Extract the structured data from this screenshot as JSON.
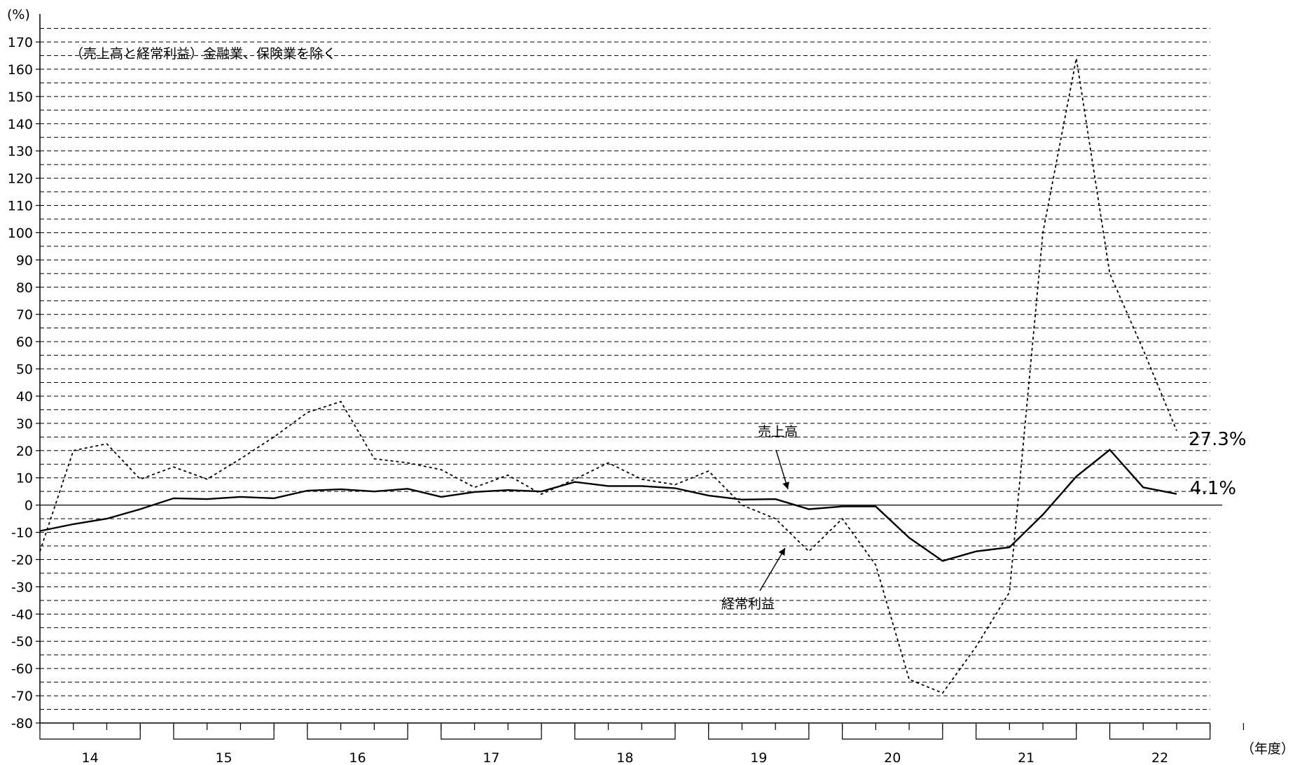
{
  "chart_data": {
    "type": "line",
    "title": "",
    "subtitle": "（売上高と経常利益）金融業、保険業を除く",
    "ylabel": "(%)",
    "xlabel": "（年度）",
    "ylim": [
      -80,
      170
    ],
    "y_ticks": [
      170,
      160,
      150,
      140,
      130,
      120,
      110,
      100,
      90,
      80,
      70,
      60,
      50,
      40,
      30,
      20,
      10,
      0,
      -10,
      -20,
      -30,
      -40,
      -50,
      -60,
      -70,
      -80
    ],
    "y_tick_labels": [
      "170",
      "160",
      "150",
      "140",
      "130",
      "120",
      "110",
      "100",
      "90",
      "80",
      "70",
      "60",
      "50",
      "40",
      "30",
      "20",
      "10",
      "0",
      "-10",
      "-20",
      "-30",
      "-40",
      "-50",
      "-60",
      "-70",
      "-80"
    ],
    "minor_grid_step": 5,
    "grid": true,
    "years": [
      "14",
      "15",
      "16",
      "17",
      "18",
      "19",
      "20",
      "21",
      "22"
    ],
    "quarters_per_year": 4,
    "series": [
      {
        "name": "売上高",
        "style": "solid",
        "values": [
          -9.5,
          -7,
          -5,
          -1.5,
          2.5,
          2.2,
          3,
          2.5,
          5.3,
          5.8,
          5,
          6,
          3,
          4.8,
          5.5,
          5,
          8.5,
          7,
          7,
          6.2,
          3.5,
          2,
          2.2,
          -1.5,
          -0.5,
          -0.5,
          -12,
          -20.5,
          -17,
          -15.5,
          -3.5,
          10.5,
          20.3,
          6.5,
          4.1
        ]
      },
      {
        "name": "経常利益",
        "style": "dashed",
        "values": [
          -17,
          20,
          22.5,
          9.5,
          14,
          9.5,
          17,
          25,
          34,
          38,
          17,
          15.5,
          13,
          6.5,
          11,
          4,
          9.5,
          15.5,
          9.5,
          7.5,
          12.5,
          0,
          -5,
          -17,
          -5,
          -22,
          -64,
          -69,
          -52,
          -32,
          100,
          164,
          85,
          57,
          27.3
        ]
      }
    ],
    "annotations": [
      {
        "text": "売上高",
        "target_series": 0
      },
      {
        "text": "経常利益",
        "target_series": 1
      },
      {
        "text": "27.3%",
        "series": 1
      },
      {
        "text": "4.1%",
        "series": 0
      }
    ]
  }
}
